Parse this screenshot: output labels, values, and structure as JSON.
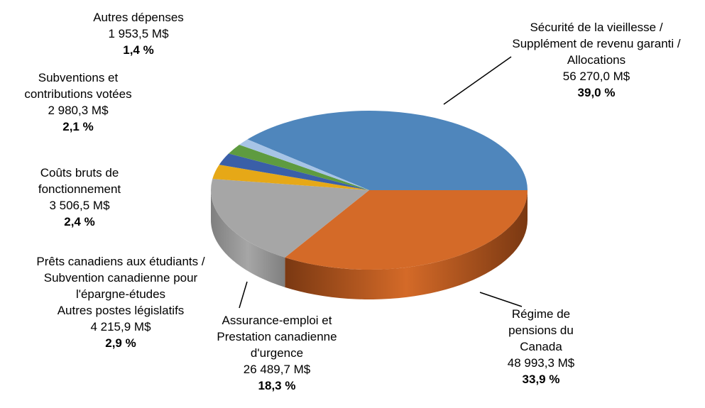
{
  "chart_data": {
    "type": "pie",
    "title": "",
    "unit": "M$",
    "slices": [
      {
        "name_lines": [
          "Sécurité de la vieillesse  /",
          "Supplément  de revenu  garanti  /",
          "Allocations"
        ],
        "value_text": "56 270,0 M$",
        "pct_text": "39,0 %",
        "value": 56270.0,
        "percent": 39.0,
        "color": "#4F86BC",
        "side": "#3A6A99"
      },
      {
        "name_lines": [
          "Régime de",
          "pensions  du",
          "Canada"
        ],
        "value_text": "48 993,3 M$",
        "pct_text": "33,9 %",
        "value": 48993.3,
        "percent": 33.9,
        "color": "#D46A28",
        "side": "#7A3812"
      },
      {
        "name_lines": [
          "Assurance-emploi  et",
          "Prestation canadienne",
          "d'urgence"
        ],
        "value_text": "26 489,7 M$",
        "pct_text": "18,3 %",
        "value": 26489.7,
        "percent": 18.3,
        "color": "#A6A6A6",
        "side": "#7F7F7F"
      },
      {
        "name_lines": [
          "Prêts canadiens  aux étudiants  /",
          "Subvention  canadienne  pour",
          "l'épargne-études",
          "Autres postes législatifs"
        ],
        "value_text": "4 215,9 M$",
        "pct_text": "2,9 %",
        "value": 4215.9,
        "percent": 2.9,
        "color": "#E6A817",
        "side": "#B8850F"
      },
      {
        "name_lines": [
          "Coûts bruts de",
          "fonctionnement"
        ],
        "value_text": "3 506,5 M$",
        "pct_text": "2,4 %",
        "value": 3506.5,
        "percent": 2.4,
        "color": "#3A5FA8",
        "side": "#2A4680"
      },
      {
        "name_lines": [
          "Subventions  et",
          "contributions  votées"
        ],
        "value_text": "2 980,3 M$",
        "pct_text": "2,1 %",
        "value": 2980.3,
        "percent": 2.1,
        "color": "#5E9B40",
        "side": "#457530"
      },
      {
        "name_lines": [
          "Autres dépenses"
        ],
        "value_text": "1 953,5 M$",
        "pct_text": "1,4 %",
        "value": 1953.5,
        "percent": 1.4,
        "color": "#A7C4E6",
        "side": "#7F9EC4"
      }
    ]
  }
}
